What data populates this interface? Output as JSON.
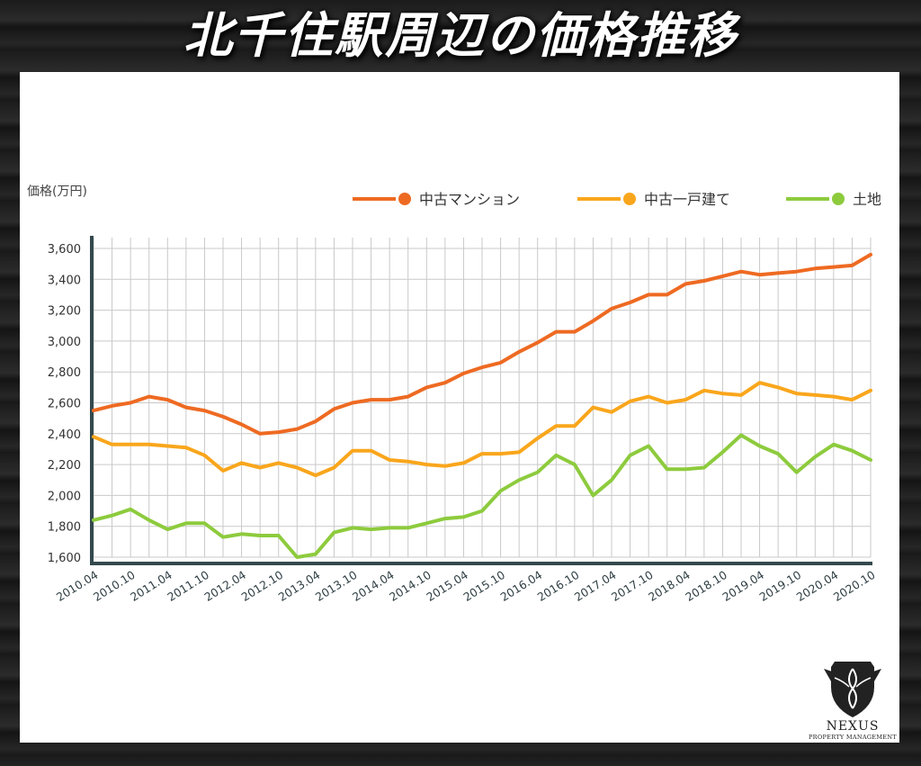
{
  "header": {
    "title": "北千住駅周辺の価格推移"
  },
  "logo": {
    "name": "NEXUS",
    "subtitle": "PROPERTY MANAGEMENT"
  },
  "chart_data": {
    "type": "line",
    "title": "",
    "ylabel": "価格(万円)",
    "xlabel": "",
    "ylim": [
      1600,
      3600
    ],
    "yticks": [
      1600,
      1800,
      2000,
      2200,
      2400,
      2600,
      2800,
      3000,
      3200,
      3400,
      3600
    ],
    "ytick_labels": [
      "1,600",
      "1,800",
      "2,000",
      "2,200",
      "2,400",
      "2,600",
      "2,800",
      "3,000",
      "3,200",
      "3,400",
      "3,600"
    ],
    "grid": true,
    "legend_position": "top-right",
    "x": [
      "2010.04",
      "2010.07",
      "2010.10",
      "2011.01",
      "2011.04",
      "2011.07",
      "2011.10",
      "2012.01",
      "2012.04",
      "2012.07",
      "2012.10",
      "2013.01",
      "2013.04",
      "2013.07",
      "2013.10",
      "2014.01",
      "2014.04",
      "2014.07",
      "2014.10",
      "2015.01",
      "2015.04",
      "2015.07",
      "2015.10",
      "2016.01",
      "2016.04",
      "2016.07",
      "2016.10",
      "2017.01",
      "2017.04",
      "2017.07",
      "2017.10",
      "2018.01",
      "2018.04",
      "2018.07",
      "2018.10",
      "2019.01",
      "2019.04",
      "2019.07",
      "2019.10",
      "2020.01",
      "2020.04",
      "2020.07",
      "2020.10"
    ],
    "xtick_labels": [
      "2010.04",
      "2010.10",
      "2011.04",
      "2011.10",
      "2012.04",
      "2012.10",
      "2013.04",
      "2013.10",
      "2014.04",
      "2014.10",
      "2015.04",
      "2015.10",
      "2016.04",
      "2016.10",
      "2017.04",
      "2017.10",
      "2018.04",
      "2018.10",
      "2019.04",
      "2019.10",
      "2020.04",
      "2020.10"
    ],
    "series": [
      {
        "name": "中古マンション",
        "color": "#ee6a22",
        "values": [
          2550,
          2580,
          2600,
          2640,
          2620,
          2570,
          2550,
          2510,
          2460,
          2400,
          2410,
          2430,
          2480,
          2560,
          2600,
          2620,
          2620,
          2640,
          2700,
          2730,
          2790,
          2830,
          2860,
          2930,
          2990,
          3060,
          3060,
          3130,
          3210,
          3250,
          3300,
          3300,
          3370,
          3390,
          3420,
          3450,
          3430,
          3440,
          3450,
          3470,
          3480,
          3490,
          3560
        ]
      },
      {
        "name": "中古一戸建て",
        "color": "#f9a61c",
        "values": [
          2380,
          2330,
          2330,
          2330,
          2320,
          2310,
          2260,
          2160,
          2210,
          2180,
          2210,
          2180,
          2130,
          2180,
          2290,
          2290,
          2230,
          2220,
          2200,
          2190,
          2210,
          2270,
          2270,
          2280,
          2370,
          2450,
          2450,
          2570,
          2540,
          2610,
          2640,
          2600,
          2620,
          2680,
          2660,
          2650,
          2730,
          2700,
          2660,
          2650,
          2640,
          2620,
          2680
        ]
      },
      {
        "name": "土地",
        "color": "#8dcb3d",
        "values": [
          1840,
          1870,
          1910,
          1840,
          1780,
          1820,
          1820,
          1730,
          1750,
          1740,
          1740,
          1600,
          1620,
          1760,
          1790,
          1780,
          1790,
          1790,
          1820,
          1850,
          1860,
          1900,
          2030,
          2100,
          2150,
          2260,
          2200,
          2000,
          2100,
          2260,
          2320,
          2170,
          2170,
          2180,
          2280,
          2390,
          2320,
          2270,
          2150,
          2250,
          2330,
          2290,
          2230
        ]
      }
    ]
  }
}
